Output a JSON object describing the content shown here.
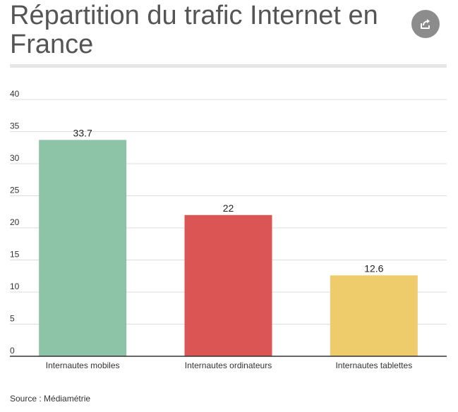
{
  "header": {
    "title": "Répartition du trafic Internet en France",
    "share_icon": "share-icon"
  },
  "footer": {
    "source": "Source : Médiamétrie"
  },
  "colors": {
    "title": "#555555",
    "grid": "#dddddd",
    "axis": "#333333",
    "share_button": "#8c8c8c"
  },
  "chart_data": {
    "type": "bar",
    "title": "Répartition du trafic Internet en France",
    "xlabel": "",
    "ylabel": "",
    "categories": [
      "Internautes mobiles",
      "Internautes ordinateurs",
      "Internautes tablettes"
    ],
    "values": [
      33.7,
      22,
      12.6
    ],
    "value_labels": [
      "33.7",
      "22",
      "12.6"
    ],
    "colors": [
      "#8dc3a7",
      "#db5555",
      "#eecb6b"
    ],
    "ylim": [
      0,
      40
    ],
    "yticks": [
      0,
      5,
      10,
      15,
      20,
      25,
      30,
      35,
      40
    ],
    "grid": true,
    "legend": "none",
    "source": "Source : Médiamétrie"
  }
}
